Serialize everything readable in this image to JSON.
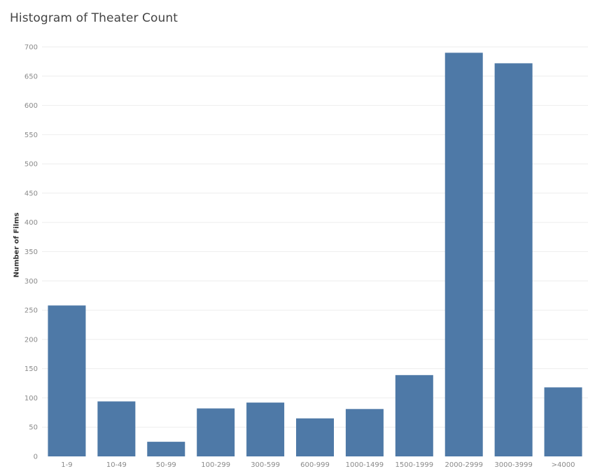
{
  "chart_data": {
    "type": "bar",
    "title": "Histogram of Theater Count",
    "xlabel": "",
    "ylabel": "Number of Films",
    "categories": [
      "1-9",
      "10-49",
      "50-99",
      "100-299",
      "300-599",
      "600-999",
      "1000-1499",
      "1500-1999",
      "2000-2999",
      "3000-3999",
      ">4000"
    ],
    "values": [
      258,
      94,
      25,
      82,
      92,
      65,
      81,
      139,
      690,
      672,
      118
    ],
    "ylim": [
      0,
      700
    ],
    "yticks": [
      0,
      50,
      100,
      150,
      200,
      250,
      300,
      350,
      400,
      450,
      500,
      550,
      600,
      650,
      700
    ],
    "grid": true,
    "bar_color": "#4e79a7"
  }
}
